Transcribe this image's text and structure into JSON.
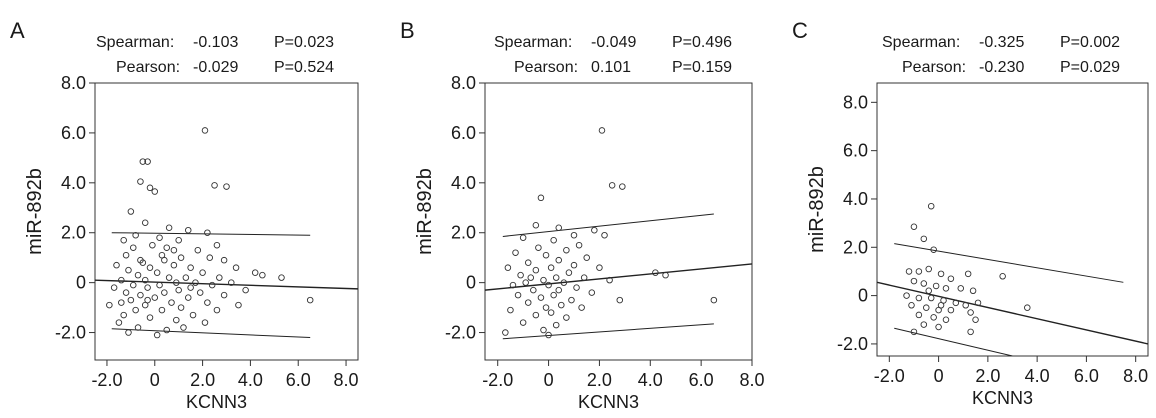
{
  "panels": [
    {
      "label": "A",
      "stats": {
        "spearman_label": "Spearman:",
        "spearman_r": "-0.103",
        "spearman_p": "P=0.023",
        "pearson_label": "Pearson:",
        "pearson_r": "-0.029",
        "pearson_p": "P=0.524"
      }
    },
    {
      "label": "B",
      "stats": {
        "spearman_label": "Spearman:",
        "spearman_r": "-0.049",
        "spearman_p": "P=0.496",
        "pearson_label": "Pearson:",
        "pearson_r": "0.101",
        "pearson_p": "P=0.159"
      }
    },
    {
      "label": "C",
      "stats": {
        "spearman_label": "Spearman:",
        "spearman_r": "-0.325",
        "spearman_p": "P=0.002",
        "pearson_label": "Pearson:",
        "pearson_r": "-0.230",
        "pearson_p": "P=0.029"
      }
    }
  ],
  "chart_data": [
    {
      "type": "scatter",
      "panel": "A",
      "xlabel": "KCNN3",
      "ylabel": "miR-892b",
      "xlim": [
        -2.5,
        8.5
      ],
      "ylim": [
        -3.1,
        8.0
      ],
      "xticks": [
        "-2.0",
        "0",
        "2.0",
        "4.0",
        "6.0",
        "8.0"
      ],
      "yticks": [
        "-2.0",
        "0",
        "2.0",
        "4.0",
        "6.0",
        "8.0"
      ],
      "grid": false,
      "fit_lines": [
        {
          "role": "fit",
          "x": [
            -2.5,
            8.5
          ],
          "y": [
            0.1,
            -0.25
          ]
        },
        {
          "role": "upper",
          "x": [
            -1.8,
            6.5
          ],
          "y": [
            2.0,
            1.9
          ]
        },
        {
          "role": "lower",
          "x": [
            -1.8,
            6.5
          ],
          "y": [
            -1.85,
            -2.2
          ]
        }
      ],
      "points": [
        [
          2.1,
          6.1
        ],
        [
          -0.5,
          4.85
        ],
        [
          -0.3,
          4.85
        ],
        [
          -0.6,
          4.05
        ],
        [
          -0.2,
          3.8
        ],
        [
          0,
          3.65
        ],
        [
          2.5,
          3.9
        ],
        [
          3.0,
          3.85
        ],
        [
          -1.0,
          2.85
        ],
        [
          -0.4,
          2.4
        ],
        [
          0.6,
          2.2
        ],
        [
          1.4,
          2.1
        ],
        [
          2.2,
          2.0
        ],
        [
          -0.8,
          1.9
        ],
        [
          -1.3,
          1.7
        ],
        [
          0.2,
          1.8
        ],
        [
          1.0,
          1.7
        ],
        [
          2.6,
          1.5
        ],
        [
          -0.1,
          1.5
        ],
        [
          -0.9,
          1.4
        ],
        [
          0.5,
          1.4
        ],
        [
          1.8,
          1.3
        ],
        [
          -1.2,
          1.1
        ],
        [
          0.3,
          1.1
        ],
        [
          1.1,
          1.0
        ],
        [
          2.3,
          1.0
        ],
        [
          2.9,
          0.9
        ],
        [
          -0.6,
          0.9
        ],
        [
          -1.6,
          0.7
        ],
        [
          0.8,
          0.7
        ],
        [
          1.5,
          0.6
        ],
        [
          3.4,
          0.6
        ],
        [
          -0.2,
          0.6
        ],
        [
          -1.1,
          0.5
        ],
        [
          0.1,
          0.4
        ],
        [
          2.0,
          0.4
        ],
        [
          4.2,
          0.4
        ],
        [
          4.5,
          0.3
        ],
        [
          5.3,
          0.2
        ],
        [
          -0.7,
          0.3
        ],
        [
          0.6,
          0.2
        ],
        [
          1.3,
          0.2
        ],
        [
          2.7,
          0.2
        ],
        [
          -1.4,
          0.1
        ],
        [
          -0.4,
          0.1
        ],
        [
          0.9,
          0.0
        ],
        [
          1.7,
          0.0
        ],
        [
          3.2,
          0.0
        ],
        [
          -0.9,
          -0.1
        ],
        [
          0.2,
          -0.1
        ],
        [
          2.4,
          -0.1
        ],
        [
          -1.7,
          -0.2
        ],
        [
          -0.3,
          -0.2
        ],
        [
          1.0,
          -0.3
        ],
        [
          3.8,
          -0.3
        ],
        [
          -1.2,
          -0.4
        ],
        [
          0.4,
          -0.4
        ],
        [
          1.9,
          -0.4
        ],
        [
          -0.6,
          -0.5
        ],
        [
          2.9,
          -0.5
        ],
        [
          0.0,
          -0.6
        ],
        [
          1.4,
          -0.6
        ],
        [
          -1.0,
          -0.7
        ],
        [
          0.7,
          -0.8
        ],
        [
          2.2,
          -0.8
        ],
        [
          -1.9,
          -0.9
        ],
        [
          -0.4,
          -0.9
        ],
        [
          3.5,
          -0.9
        ],
        [
          1.1,
          -1.0
        ],
        [
          -0.8,
          -1.1
        ],
        [
          0.3,
          -1.1
        ],
        [
          2.6,
          -1.1
        ],
        [
          -1.3,
          -1.3
        ],
        [
          1.6,
          -1.3
        ],
        [
          -0.2,
          -1.4
        ],
        [
          0.9,
          -1.5
        ],
        [
          -1.5,
          -1.6
        ],
        [
          2.1,
          -1.6
        ],
        [
          -0.7,
          -1.8
        ],
        [
          0.5,
          -1.9
        ],
        [
          -1.1,
          -2.0
        ],
        [
          0.1,
          -2.1
        ],
        [
          1.2,
          -1.8
        ],
        [
          6.5,
          -0.7
        ],
        [
          -0.5,
          0.8
        ],
        [
          0.4,
          0.9
        ],
        [
          -0.3,
          -0.7
        ],
        [
          1.5,
          -0.2
        ],
        [
          -1.4,
          -0.8
        ],
        [
          0.8,
          1.3
        ]
      ]
    },
    {
      "type": "scatter",
      "panel": "B",
      "xlabel": "KCNN3",
      "ylabel": "miR-892b",
      "xlim": [
        -2.5,
        8.0
      ],
      "ylim": [
        -3.1,
        8.0
      ],
      "xticks": [
        "-2.0",
        "0",
        "2.0",
        "4.0",
        "6.0",
        "8.0"
      ],
      "yticks": [
        "-2.0",
        "0",
        "2.0",
        "4.0",
        "6.0",
        "8.0"
      ],
      "grid": false,
      "fit_lines": [
        {
          "role": "fit",
          "x": [
            -2.5,
            8.0
          ],
          "y": [
            -0.3,
            0.75
          ]
        },
        {
          "role": "upper",
          "x": [
            -1.8,
            6.5
          ],
          "y": [
            1.85,
            2.75
          ]
        },
        {
          "role": "lower",
          "x": [
            -1.8,
            6.5
          ],
          "y": [
            -2.25,
            -1.65
          ]
        }
      ],
      "points": [
        [
          2.1,
          6.1
        ],
        [
          -0.3,
          3.4
        ],
        [
          2.5,
          3.9
        ],
        [
          2.9,
          3.85
        ],
        [
          -0.5,
          2.3
        ],
        [
          0.4,
          2.2
        ],
        [
          1.8,
          2.1
        ],
        [
          2.2,
          1.9
        ],
        [
          -1.0,
          1.8
        ],
        [
          0.2,
          1.7
        ],
        [
          1.2,
          1.5
        ],
        [
          -0.4,
          1.4
        ],
        [
          0.7,
          1.3
        ],
        [
          -1.3,
          1.2
        ],
        [
          -0.1,
          1.1
        ],
        [
          1.5,
          1.0
        ],
        [
          0.4,
          0.9
        ],
        [
          -0.8,
          0.8
        ],
        [
          1.0,
          0.7
        ],
        [
          -1.6,
          0.6
        ],
        [
          0.1,
          0.6
        ],
        [
          2.0,
          0.6
        ],
        [
          -0.5,
          0.5
        ],
        [
          0.8,
          0.4
        ],
        [
          4.2,
          0.4
        ],
        [
          4.6,
          0.3
        ],
        [
          -1.1,
          0.3
        ],
        [
          0.3,
          0.2
        ],
        [
          1.4,
          0.2
        ],
        [
          -0.2,
          0.1
        ],
        [
          2.4,
          0.1
        ],
        [
          -0.9,
          0.0
        ],
        [
          0.6,
          0.0
        ],
        [
          -1.4,
          -0.1
        ],
        [
          0.0,
          -0.1
        ],
        [
          1.1,
          -0.2
        ],
        [
          -0.6,
          -0.3
        ],
        [
          0.4,
          -0.3
        ],
        [
          1.7,
          -0.4
        ],
        [
          -1.2,
          -0.5
        ],
        [
          0.2,
          -0.5
        ],
        [
          -0.3,
          -0.6
        ],
        [
          0.9,
          -0.7
        ],
        [
          2.8,
          -0.7
        ],
        [
          -0.8,
          -0.8
        ],
        [
          0.5,
          -0.9
        ],
        [
          -0.1,
          -1.0
        ],
        [
          1.3,
          -1.0
        ],
        [
          -1.5,
          -1.1
        ],
        [
          0.1,
          -1.2
        ],
        [
          -0.5,
          -1.3
        ],
        [
          0.7,
          -1.4
        ],
        [
          -1.0,
          -1.6
        ],
        [
          0.3,
          -1.7
        ],
        [
          -0.2,
          -1.9
        ],
        [
          -1.7,
          -2.0
        ],
        [
          0.0,
          -2.1
        ],
        [
          6.5,
          -0.7
        ],
        [
          1.0,
          1.9
        ],
        [
          -0.7,
          0.2
        ]
      ]
    },
    {
      "type": "scatter",
      "panel": "C",
      "xlabel": "KCNN3",
      "ylabel": "miR-892b",
      "xlim": [
        -2.5,
        8.5
      ],
      "ylim": [
        -2.5,
        8.8
      ],
      "xticks": [
        "-2.0",
        "0",
        "2.0",
        "4.0",
        "6.0",
        "8.0"
      ],
      "yticks": [
        "-2.0",
        "0",
        "2.0",
        "4.0",
        "6.0",
        "8.0"
      ],
      "grid": false,
      "fit_lines": [
        {
          "role": "fit",
          "x": [
            -2.5,
            8.5
          ],
          "y": [
            0.55,
            -2.0
          ]
        },
        {
          "role": "upper",
          "x": [
            -1.8,
            7.5
          ],
          "y": [
            2.15,
            0.55
          ]
        },
        {
          "role": "lower",
          "x": [
            -1.8,
            3.0
          ],
          "y": [
            -1.35,
            -2.5
          ]
        }
      ],
      "points": [
        [
          -0.3,
          3.7
        ],
        [
          -0.6,
          2.35
        ],
        [
          -1.0,
          2.85
        ],
        [
          -0.2,
          1.9
        ],
        [
          -1.2,
          1.0
        ],
        [
          -0.8,
          1.0
        ],
        [
          -0.4,
          1.1
        ],
        [
          0.1,
          0.9
        ],
        [
          0.5,
          0.7
        ],
        [
          1.2,
          0.9
        ],
        [
          2.6,
          0.8
        ],
        [
          -1.0,
          0.6
        ],
        [
          -0.6,
          0.5
        ],
        [
          -0.1,
          0.4
        ],
        [
          0.3,
          0.3
        ],
        [
          0.9,
          0.3
        ],
        [
          1.4,
          0.2
        ],
        [
          -1.3,
          0.0
        ],
        [
          -0.8,
          -0.1
        ],
        [
          -0.3,
          -0.1
        ],
        [
          0.2,
          -0.2
        ],
        [
          0.7,
          -0.3
        ],
        [
          1.1,
          -0.4
        ],
        [
          1.6,
          -0.3
        ],
        [
          -1.1,
          -0.4
        ],
        [
          -0.5,
          -0.5
        ],
        [
          0.0,
          -0.6
        ],
        [
          0.5,
          -0.6
        ],
        [
          1.3,
          -0.7
        ],
        [
          -0.8,
          -0.8
        ],
        [
          -0.2,
          -0.9
        ],
        [
          0.3,
          -1.0
        ],
        [
          1.5,
          -1.0
        ],
        [
          -0.6,
          -1.2
        ],
        [
          0.0,
          -1.3
        ],
        [
          -1.0,
          -1.5
        ],
        [
          1.3,
          -1.5
        ],
        [
          3.6,
          -0.5
        ],
        [
          -0.4,
          0.2
        ],
        [
          0.1,
          -0.4
        ]
      ]
    }
  ]
}
